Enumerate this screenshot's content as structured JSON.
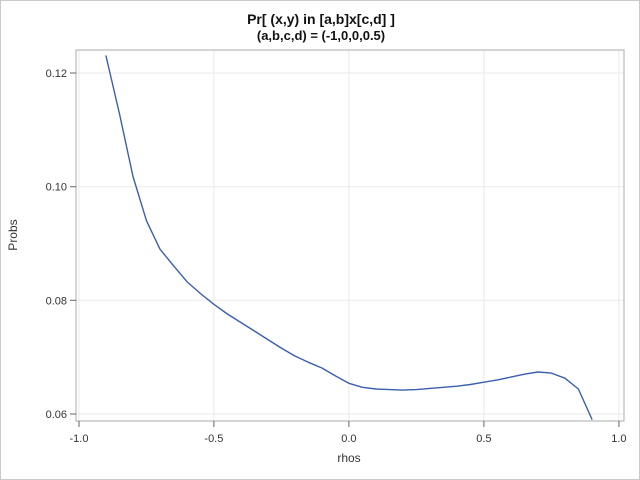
{
  "colors": {
    "line": "#3a5fb0",
    "grid": "#e9e9e9",
    "frame": "#ababab",
    "tick": "#666666",
    "text": "#333333",
    "title": "#111111",
    "border": "#c9c9c9",
    "background": "#ffffff"
  },
  "chart_data": {
    "type": "line",
    "title": "Pr[ (x,y) in [a,b]x[c,d] ]",
    "subtitle": "(a,b,c,d) = (-1,0,0,0.5)",
    "xlabel": "rhos",
    "ylabel": "Probs",
    "xlim": [
      -1.011,
      1.019
    ],
    "ylim": [
      0.05877,
      0.12405
    ],
    "grid": true,
    "legend": "none",
    "xticks": {
      "values": [
        -1.0,
        -0.5,
        0.0,
        0.5,
        1.0
      ],
      "labels": [
        "-1.0",
        "-0.5",
        "0.0",
        "0.5",
        "1.0"
      ]
    },
    "yticks": {
      "values": [
        0.06,
        0.08,
        0.1,
        0.12
      ],
      "labels": [
        "0.06",
        "0.08",
        "0.10",
        "0.12"
      ]
    },
    "series": [
      {
        "name": "Probs",
        "x": [
          -0.9,
          -0.85,
          -0.8,
          -0.75,
          -0.7,
          -0.65,
          -0.6,
          -0.55,
          -0.5,
          -0.45,
          -0.4,
          -0.35,
          -0.3,
          -0.25,
          -0.2,
          -0.15,
          -0.1,
          -0.05,
          0.0,
          0.05,
          0.1,
          0.15,
          0.2,
          0.25,
          0.3,
          0.35,
          0.4,
          0.45,
          0.5,
          0.55,
          0.6,
          0.65,
          0.7,
          0.75,
          0.8,
          0.85,
          0.9
        ],
        "y": [
          0.123,
          0.1128,
          0.1018,
          0.094,
          0.089,
          0.0861,
          0.0833,
          0.0812,
          0.0793,
          0.0776,
          0.0761,
          0.0746,
          0.0731,
          0.0716,
          0.0702,
          0.0691,
          0.0681,
          0.0667,
          0.0654,
          0.0647,
          0.0644,
          0.0643,
          0.0642,
          0.0643,
          0.0645,
          0.0647,
          0.0649,
          0.0652,
          0.0656,
          0.066,
          0.0665,
          0.067,
          0.0674,
          0.0672,
          0.0663,
          0.0644,
          0.0591
        ]
      }
    ]
  }
}
